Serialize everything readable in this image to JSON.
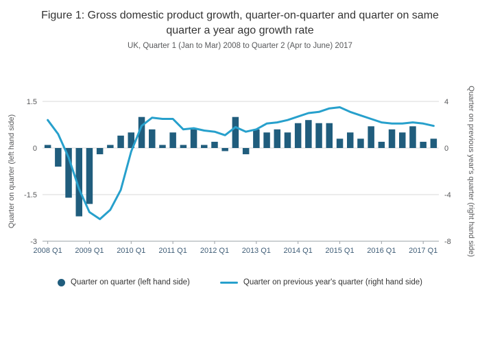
{
  "header": {
    "title": "Figure 1: Gross domestic product growth, quarter-on-quarter and quarter on same quarter a year ago growth rate",
    "subtitle": "UK, Quarter 1 (Jan to Mar) 2008 to Quarter 2 (Apr to June) 2017"
  },
  "chart_data": {
    "type": "bar+line",
    "title": "Figure 1: Gross domestic product growth, quarter-on-quarter and quarter on same quarter a year ago growth rate",
    "subtitle": "UK, Quarter 1 (Jan to Mar) 2008 to Quarter 2 (Apr to June) 2017",
    "categories": [
      "2008 Q1",
      "2008 Q2",
      "2008 Q3",
      "2008 Q4",
      "2009 Q1",
      "2009 Q2",
      "2009 Q3",
      "2009 Q4",
      "2010 Q1",
      "2010 Q2",
      "2010 Q3",
      "2010 Q4",
      "2011 Q1",
      "2011 Q2",
      "2011 Q3",
      "2011 Q4",
      "2012 Q1",
      "2012 Q2",
      "2012 Q3",
      "2012 Q4",
      "2013 Q1",
      "2013 Q2",
      "2013 Q3",
      "2013 Q4",
      "2014 Q1",
      "2014 Q2",
      "2014 Q3",
      "2014 Q4",
      "2015 Q1",
      "2015 Q2",
      "2015 Q3",
      "2015 Q4",
      "2016 Q1",
      "2016 Q2",
      "2016 Q3",
      "2016 Q4",
      "2017 Q1",
      "2017 Q2"
    ],
    "series": [
      {
        "name": "Quarter on quarter (left hand side)",
        "type": "bar",
        "axis": "left",
        "color": "#205d7d",
        "values": [
          0.1,
          -0.6,
          -1.6,
          -2.2,
          -1.8,
          -0.2,
          0.1,
          0.4,
          0.5,
          1.0,
          0.6,
          0.1,
          0.5,
          0.1,
          0.6,
          0.1,
          0.2,
          -0.1,
          1.0,
          -0.2,
          0.6,
          0.5,
          0.6,
          0.5,
          0.8,
          0.9,
          0.8,
          0.8,
          0.3,
          0.5,
          0.3,
          0.7,
          0.2,
          0.6,
          0.5,
          0.7,
          0.2,
          0.3
        ]
      },
      {
        "name": "Quarter on previous year's quarter (right hand side)",
        "type": "line",
        "axis": "right",
        "color": "#27a0cc",
        "values": [
          2.4,
          1.2,
          -0.8,
          -3.5,
          -5.5,
          -6.1,
          -5.3,
          -3.6,
          -0.3,
          1.9,
          2.6,
          2.5,
          2.5,
          1.6,
          1.7,
          1.5,
          1.4,
          1.1,
          1.8,
          1.4,
          1.6,
          2.1,
          2.2,
          2.4,
          2.7,
          3.0,
          3.1,
          3.4,
          3.5,
          3.1,
          2.8,
          2.5,
          2.2,
          2.1,
          2.1,
          2.2,
          2.1,
          1.9
        ]
      }
    ],
    "left_axis": {
      "label": "Quarter on quarter (left hand side)",
      "ticks": [
        1.5,
        0,
        -1.5,
        -3
      ],
      "range": [
        -3,
        1.7
      ]
    },
    "right_axis": {
      "label": "Quarter on previous year's quarter (right hand side)",
      "ticks": [
        4,
        0,
        -4,
        -8
      ],
      "range": [
        -8,
        4.5
      ]
    },
    "x_tick_labels": [
      "2008 Q1",
      "2009 Q1",
      "2010 Q1",
      "2011 Q1",
      "2012 Q1",
      "2013 Q1",
      "2014 Q1",
      "2015 Q1",
      "2016 Q1",
      "2017 Q1"
    ],
    "grid": true,
    "legend_position": "bottom",
    "style": {
      "grid": "#d9d9d9",
      "axis": "#9aa0a6",
      "tick_color": "#58595b",
      "x_tick_color": "#3e5c76"
    }
  },
  "legend": {
    "items": [
      {
        "label": "Quarter on quarter (left hand side)",
        "marker": "dot",
        "color": "#205d7d"
      },
      {
        "label": "Quarter on previous year's quarter (right hand side)",
        "marker": "line",
        "color": "#27a0cc"
      }
    ]
  }
}
